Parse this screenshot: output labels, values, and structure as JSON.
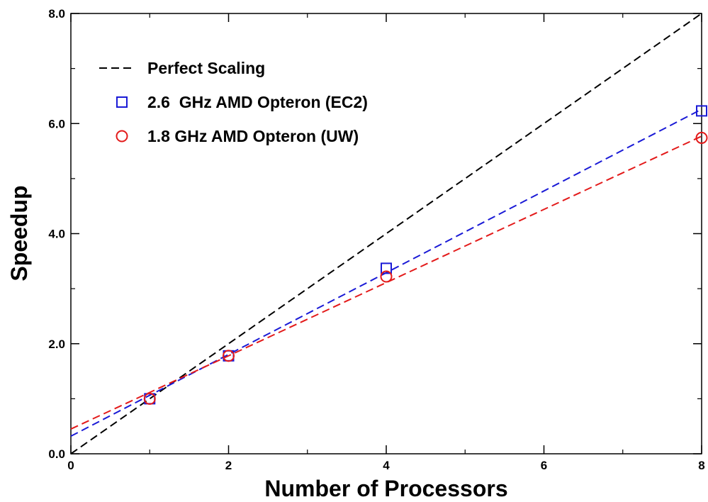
{
  "chart_data": {
    "type": "scatter",
    "title": "",
    "xlabel": "Number of Processors",
    "ylabel": "Speedup",
    "xlim": [
      0,
      8
    ],
    "ylim": [
      0,
      8
    ],
    "xticks": [
      {
        "value": 0,
        "label": "0"
      },
      {
        "value": 2,
        "label": "2"
      },
      {
        "value": 4,
        "label": "4"
      },
      {
        "value": 6,
        "label": "6"
      },
      {
        "value": 8,
        "label": "8"
      }
    ],
    "yticks": [
      {
        "value": 0,
        "label": "0.0"
      },
      {
        "value": 2,
        "label": "2.0"
      },
      {
        "value": 4,
        "label": "4.0"
      },
      {
        "value": 6,
        "label": "6.0"
      },
      {
        "value": 8,
        "label": "8.0"
      }
    ],
    "grid": false,
    "legend_position": "top-left",
    "series": [
      {
        "name": "Perfect Scaling",
        "kind": "dashed-line",
        "color": "#000000",
        "x": [
          0,
          8
        ],
        "y": [
          0,
          8
        ]
      },
      {
        "name": "2.6  GHz AMD Opteron (EC2)",
        "kind": "markers-with-fit",
        "marker": "square",
        "color": "#1a1ad6",
        "x": [
          1,
          2,
          4,
          8
        ],
        "y": [
          1.0,
          1.78,
          3.37,
          6.23
        ],
        "fit_line": {
          "x": [
            0,
            8
          ],
          "y": [
            0.32,
            6.26
          ]
        }
      },
      {
        "name": "1.8 GHz AMD Opteron (UW)",
        "kind": "markers-with-fit",
        "marker": "circle",
        "color": "#e31a1a",
        "x": [
          1,
          2,
          4,
          8
        ],
        "y": [
          1.0,
          1.78,
          3.22,
          5.74
        ],
        "fit_line": {
          "x": [
            0,
            8
          ],
          "y": [
            0.45,
            5.77
          ]
        }
      }
    ]
  }
}
